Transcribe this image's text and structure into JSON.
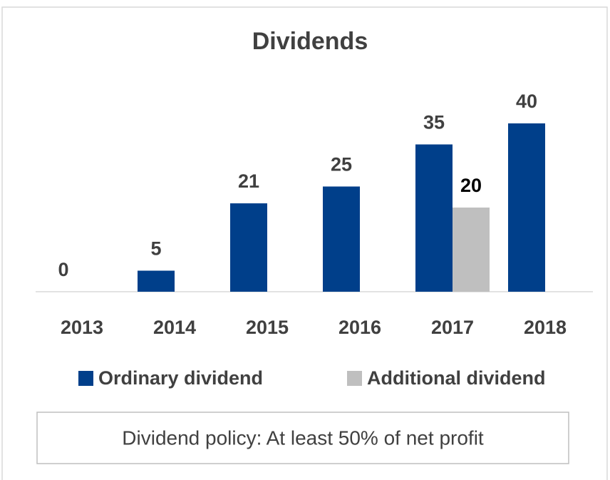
{
  "chart_data": {
    "type": "bar",
    "title": "Dividends",
    "categories": [
      "2013",
      "2014",
      "2015",
      "2016",
      "2017",
      "2018"
    ],
    "series": [
      {
        "name": "Ordinary dividend",
        "color": "#003f8a",
        "values": [
          0,
          5,
          21,
          25,
          35,
          40
        ]
      },
      {
        "name": "Additional dividend",
        "color": "#bfbfbf",
        "values": [
          null,
          null,
          null,
          null,
          20,
          null
        ]
      }
    ],
    "ylim": [
      0,
      40
    ],
    "annotation": "Dividend policy: At least 50% of net profit"
  }
}
